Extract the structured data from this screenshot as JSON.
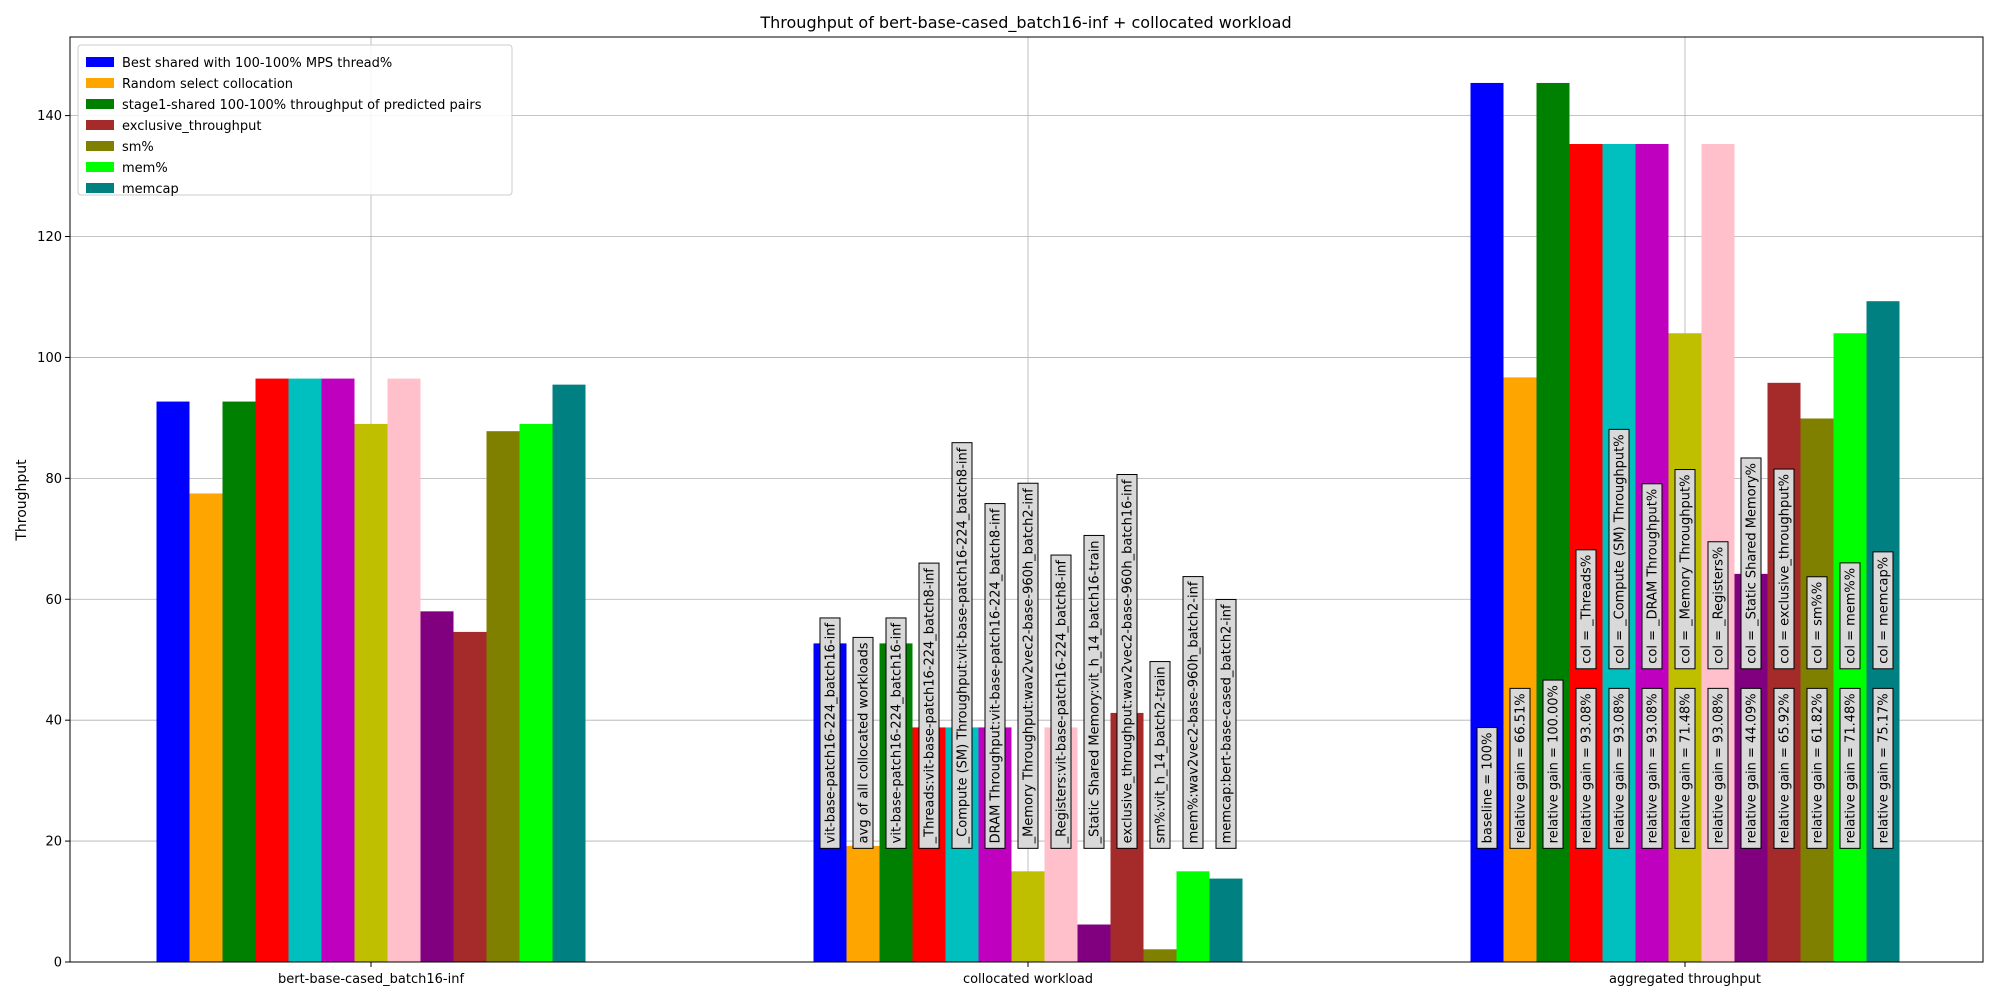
{
  "chart_data": {
    "type": "bar",
    "title": "Throughput of bert-base-cased_batch16-inf + collocated workload",
    "xlabel": "",
    "ylabel": "Throughput",
    "ylim": [
      0,
      153
    ],
    "yticks": [
      0,
      20,
      40,
      60,
      80,
      100,
      120,
      140
    ],
    "grid": true,
    "legend_position": "top-left",
    "categories": [
      "bert-base-cased_batch16-inf",
      "collocated workload",
      "aggregated throughput"
    ],
    "bar_colors": [
      "#0000ff",
      "#ffa500",
      "#008000",
      "#ff0000",
      "#00bfbf",
      "#bf00bf",
      "#bfbf00",
      "#ffc0cb",
      "#800080",
      "#a52a2a",
      "#808000",
      "#00ff00",
      "#008080"
    ],
    "legend": [
      {
        "label": "Best shared with 100-100% MPS thread%",
        "color": "#0000ff"
      },
      {
        "label": "Random select collocation",
        "color": "#ffa500"
      },
      {
        "label": "stage1-shared 100-100% throughput of predicted pairs",
        "color": "#008000"
      },
      {
        "label": "exclusive_throughput",
        "color": "#a52a2a"
      },
      {
        "label": "sm%",
        "color": "#808000"
      },
      {
        "label": "mem%",
        "color": "#00ff00"
      },
      {
        "label": "memcap",
        "color": "#008080"
      }
    ],
    "groups": [
      {
        "category": "bert-base-cased_batch16-inf",
        "values": [
          92.7,
          77.5,
          92.7,
          96.5,
          96.5,
          96.5,
          89.0,
          96.5,
          58.0,
          54.6,
          87.8,
          89.0,
          95.5
        ]
      },
      {
        "category": "collocated workload",
        "values": [
          52.7,
          19.2,
          52.7,
          38.8,
          38.8,
          38.8,
          15.0,
          38.8,
          6.2,
          41.2,
          2.1,
          15.0,
          13.8
        ]
      },
      {
        "category": "aggregated throughput",
        "values": [
          145.4,
          96.7,
          145.4,
          135.3,
          135.3,
          135.3,
          104.0,
          135.3,
          64.2,
          95.8,
          89.9,
          104.0,
          109.3
        ]
      }
    ],
    "collocated_labels": [
      "vit-base-patch16-224_batch16-inf",
      "avg of all collocated workloads",
      "vit-base-patch16-224_batch16-inf",
      "_Threads:vit-base-patch16-224_batch8-inf",
      "_Compute (SM) Throughput:vit-base-patch16-224_batch8-inf",
      "DRAM Throughput:vit-base-patch16-224_batch8-inf",
      "_Memory Throughput:wav2vec2-base-960h_batch2-inf",
      "_Registers:vit-base-patch16-224_batch8-inf",
      "_Static Shared Memory:vit_h_14_batch16-train",
      "exclusive_throughput:wav2vec2-base-960h_batch16-inf",
      "sm%:vit_h_14_batch2-train",
      "mem%:wav2vec2-base-960h_batch2-inf",
      "memcap:bert-base-cased_batch2-inf"
    ],
    "gain_labels": [
      "baseline = 100%",
      "relative gain = 66.51%",
      "relative gain = 100.00%",
      "relative gain = 93.08%",
      "relative gain = 93.08%",
      "relative gain = 93.08%",
      "relative gain = 71.48%",
      "relative gain = 93.08%",
      "relative gain = 44.09%",
      "relative gain = 65.92%",
      "relative gain = 61.82%",
      "relative gain = 71.48%",
      "relative gain = 75.17%"
    ],
    "col_labels": [
      "",
      "",
      "",
      "col = _Threads%",
      "col = _Compute (SM) Throughput%",
      "col = _DRAM Throughput%",
      "col = _Memory Throughput%",
      "col = _Registers%",
      "col = _Static Shared Memory%",
      "col = exclusive_throughput%",
      "col = sm%%",
      "col = mem%%",
      "col = memcap%"
    ]
  }
}
